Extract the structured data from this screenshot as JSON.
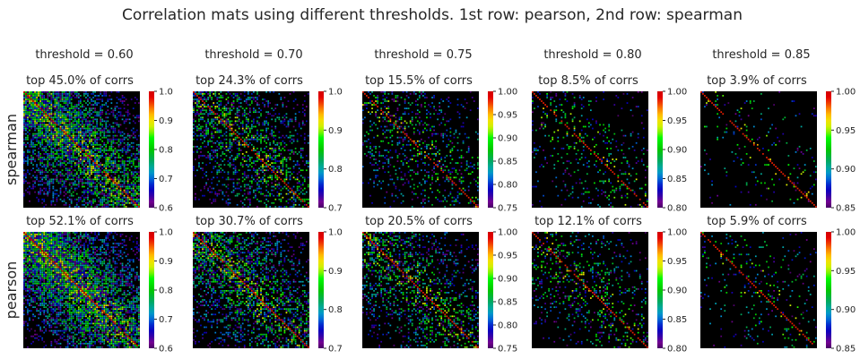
{
  "figure": {
    "title": "Correlation mats using different thresholds.  1st row: pearson, 2nd row: spearman"
  },
  "chart_data": {
    "type": "heatmap",
    "title": "Correlation mats using different thresholds.  1st row: pearson, 2nd row: spearman",
    "colormap": "nipy_spectral",
    "background_color": "#000000",
    "columns": [
      {
        "threshold_label": "threshold = 0.60",
        "threshold": 0.6,
        "colorbar_ticks": [
          "0.6",
          "0.7",
          "0.8",
          "0.9",
          "1.0"
        ],
        "vmin": 0.6,
        "vmax": 1.0
      },
      {
        "threshold_label": "threshold = 0.70",
        "threshold": 0.7,
        "colorbar_ticks": [
          "0.7",
          "0.8",
          "0.9",
          "1.0"
        ],
        "vmin": 0.7,
        "vmax": 1.0
      },
      {
        "threshold_label": "threshold = 0.75",
        "threshold": 0.75,
        "colorbar_ticks": [
          "0.75",
          "0.80",
          "0.85",
          "0.90",
          "0.95",
          "1.00"
        ],
        "vmin": 0.75,
        "vmax": 1.0
      },
      {
        "threshold_label": "threshold = 0.80",
        "threshold": 0.8,
        "colorbar_ticks": [
          "0.80",
          "0.85",
          "0.90",
          "0.95",
          "1.00"
        ],
        "vmin": 0.8,
        "vmax": 1.0
      },
      {
        "threshold_label": "threshold = 0.85",
        "threshold": 0.85,
        "colorbar_ticks": [
          "0.85",
          "0.90",
          "0.95",
          "1.00"
        ],
        "vmin": 0.85,
        "vmax": 1.0
      }
    ],
    "rows": [
      {
        "label": "spearman",
        "subtitles": [
          "top 45.0% of corrs",
          "top 24.3% of corrs",
          "top 15.5% of corrs",
          "top 8.5% of corrs",
          "top 3.9% of corrs"
        ],
        "fractions": [
          0.45,
          0.243,
          0.155,
          0.085,
          0.039
        ]
      },
      {
        "label": "pearson",
        "subtitles": [
          "top 52.1% of corrs",
          "top 30.7% of corrs",
          "top 20.5% of corrs",
          "top 12.1% of corrs",
          "top 5.9% of corrs"
        ],
        "fractions": [
          0.521,
          0.307,
          0.205,
          0.121,
          0.059
        ]
      }
    ]
  }
}
